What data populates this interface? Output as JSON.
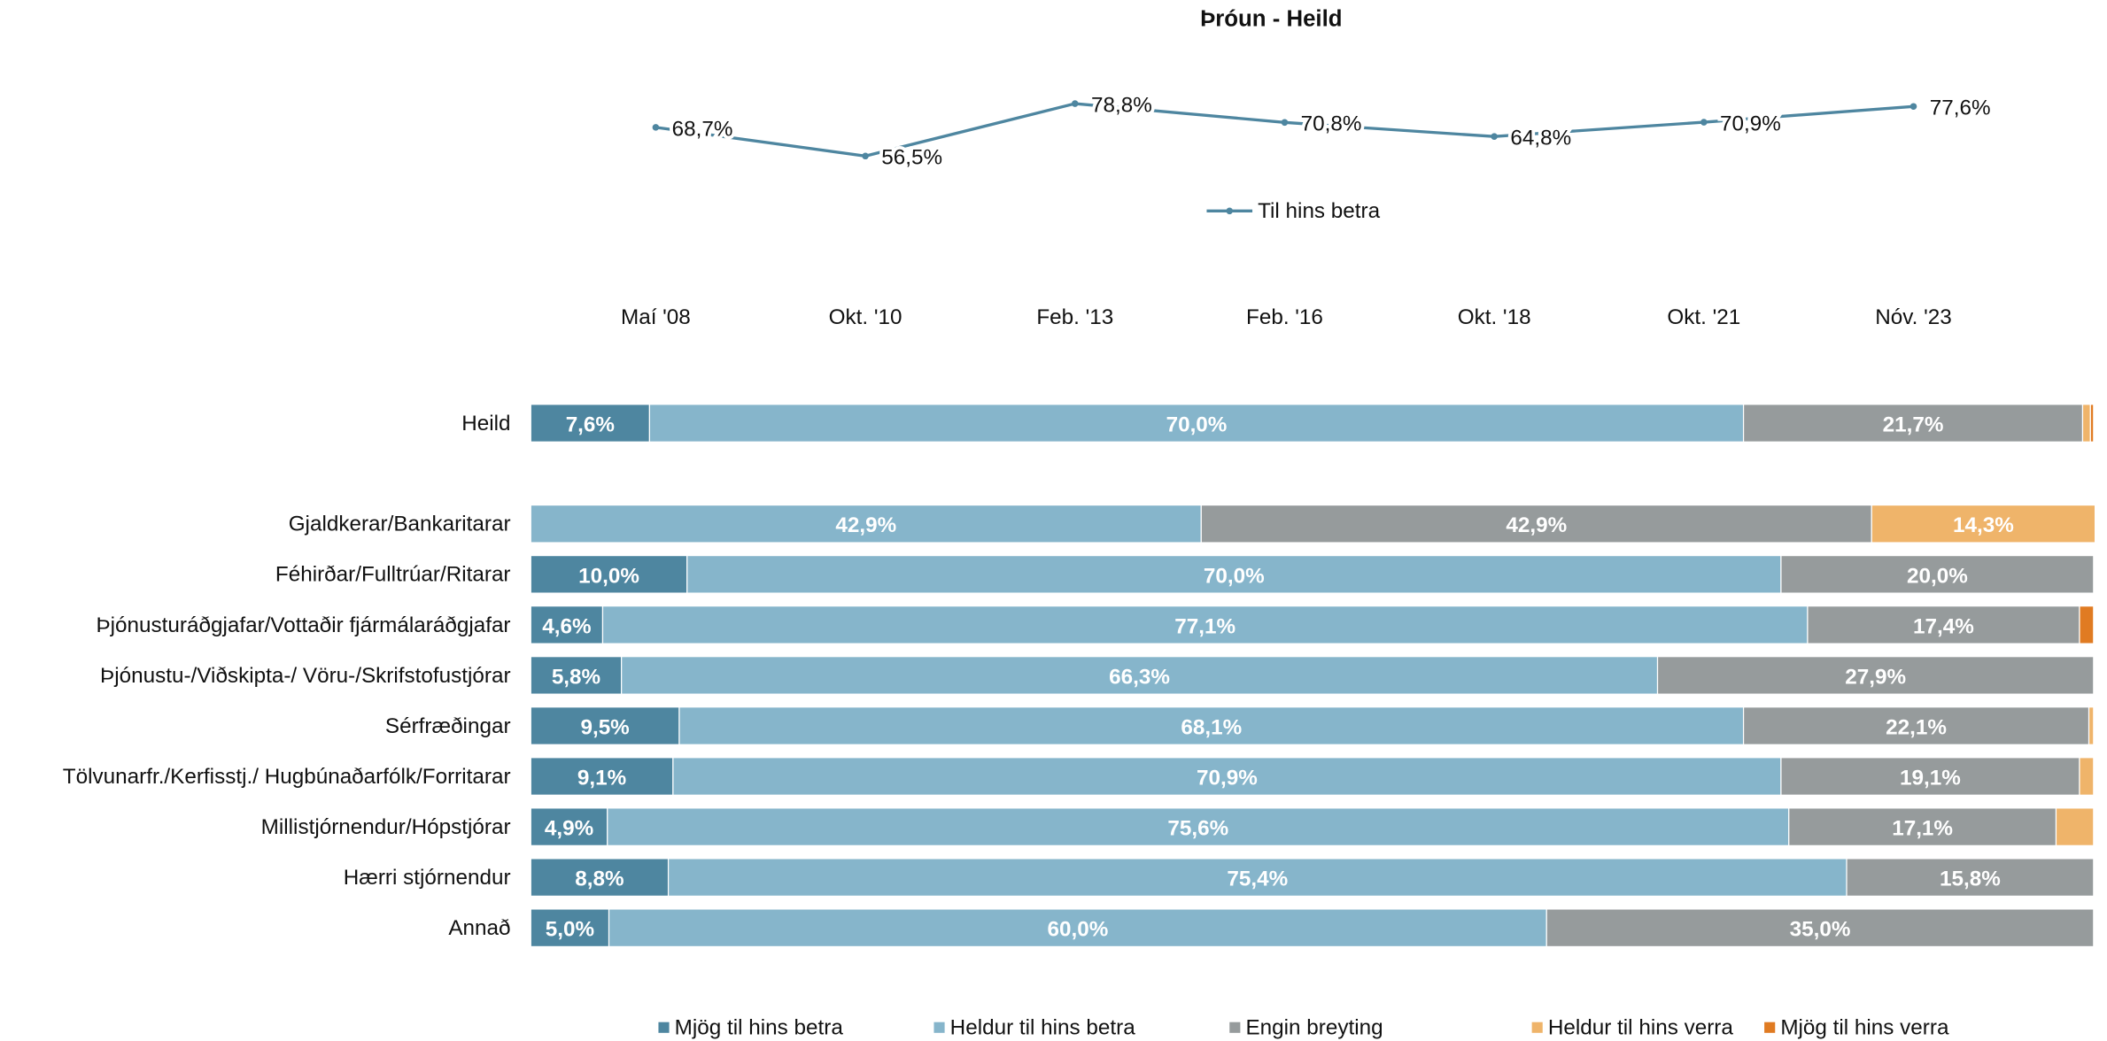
{
  "chart_data": [
    {
      "type": "line",
      "title": "Þróun - Heild",
      "categories": [
        "Maí '08",
        "Okt. '10",
        "Feb. '13",
        "Feb. '16",
        "Okt. '18",
        "Okt. '21",
        "Nóv. '23"
      ],
      "ylim": [
        0,
        100
      ],
      "series": [
        {
          "name": "Til hins betra",
          "color": "#4e86a0",
          "values": [
            68.7,
            56.5,
            78.8,
            70.8,
            64.8,
            70.9,
            77.6
          ],
          "value_labels": [
            "68,7%",
            "56,5%",
            "78,8%",
            "70,8%",
            "64,8%",
            "70,9%",
            "77,6%"
          ]
        }
      ]
    },
    {
      "type": "stacked-barh",
      "categories": [
        "Heild",
        "Gjaldkerar/Bankaritarar",
        "Féhirðar/Fulltrúar/Ritarar",
        "Þjónusturáðgjafar/Vottaðir fjármálaráðgjafar",
        "Þjónustu-/Viðskipta-/ Vöru-/Skrifstofustjórar",
        "Sérfræðingar",
        "Tölvunarfr./Kerfisstj./ Hugbúnaðarfólk/Forritarar",
        "Millistjórnendur/Hópstjórar",
        "Hærri stjórnendur",
        "Annað"
      ],
      "xlim": [
        0,
        100
      ],
      "series": [
        {
          "name": "Mjög til hins betra",
          "color": "#4e86a0",
          "values": [
            7.6,
            0,
            10.0,
            4.6,
            5.8,
            9.5,
            9.1,
            4.9,
            8.8,
            5.0
          ],
          "value_labels": [
            "7,6%",
            null,
            "10,0%",
            "4,6%",
            "5,8%",
            "9,5%",
            "9,1%",
            "4,9%",
            "8,8%",
            "5,0%"
          ]
        },
        {
          "name": "Heldur til hins betra",
          "color": "#86b5cb",
          "values": [
            70.0,
            42.9,
            70.0,
            77.1,
            66.3,
            68.1,
            70.9,
            75.6,
            75.4,
            60.0
          ],
          "value_labels": [
            "70,0%",
            "42,9%",
            "70,0%",
            "77,1%",
            "66,3%",
            "68,1%",
            "70,9%",
            "75,6%",
            "75,4%",
            "60,0%"
          ]
        },
        {
          "name": "Engin breyting",
          "color": "#969b9c",
          "values": [
            21.7,
            42.9,
            20.0,
            17.4,
            27.9,
            22.1,
            19.1,
            17.1,
            15.8,
            35.0
          ],
          "value_labels": [
            "21,7%",
            "42,9%",
            "20,0%",
            "17,4%",
            "27,9%",
            "22,1%",
            "19,1%",
            "17,1%",
            "15,8%",
            "35,0%"
          ]
        },
        {
          "name": "Heldur til hins verra",
          "color": "#efb46a",
          "values": [
            0.5,
            14.3,
            0,
            0,
            0,
            0.3,
            0.9,
            2.4,
            0,
            0
          ],
          "value_labels": [
            null,
            "14,3%",
            null,
            null,
            null,
            null,
            null,
            null,
            null,
            null
          ]
        },
        {
          "name": "Mjög til hins verra",
          "color": "#e07b22",
          "values": [
            0.2,
            0,
            0,
            0.9,
            0,
            0,
            0,
            0,
            0,
            0
          ],
          "value_labels": [
            null,
            null,
            null,
            null,
            null,
            null,
            null,
            null,
            null,
            null
          ]
        }
      ]
    }
  ]
}
